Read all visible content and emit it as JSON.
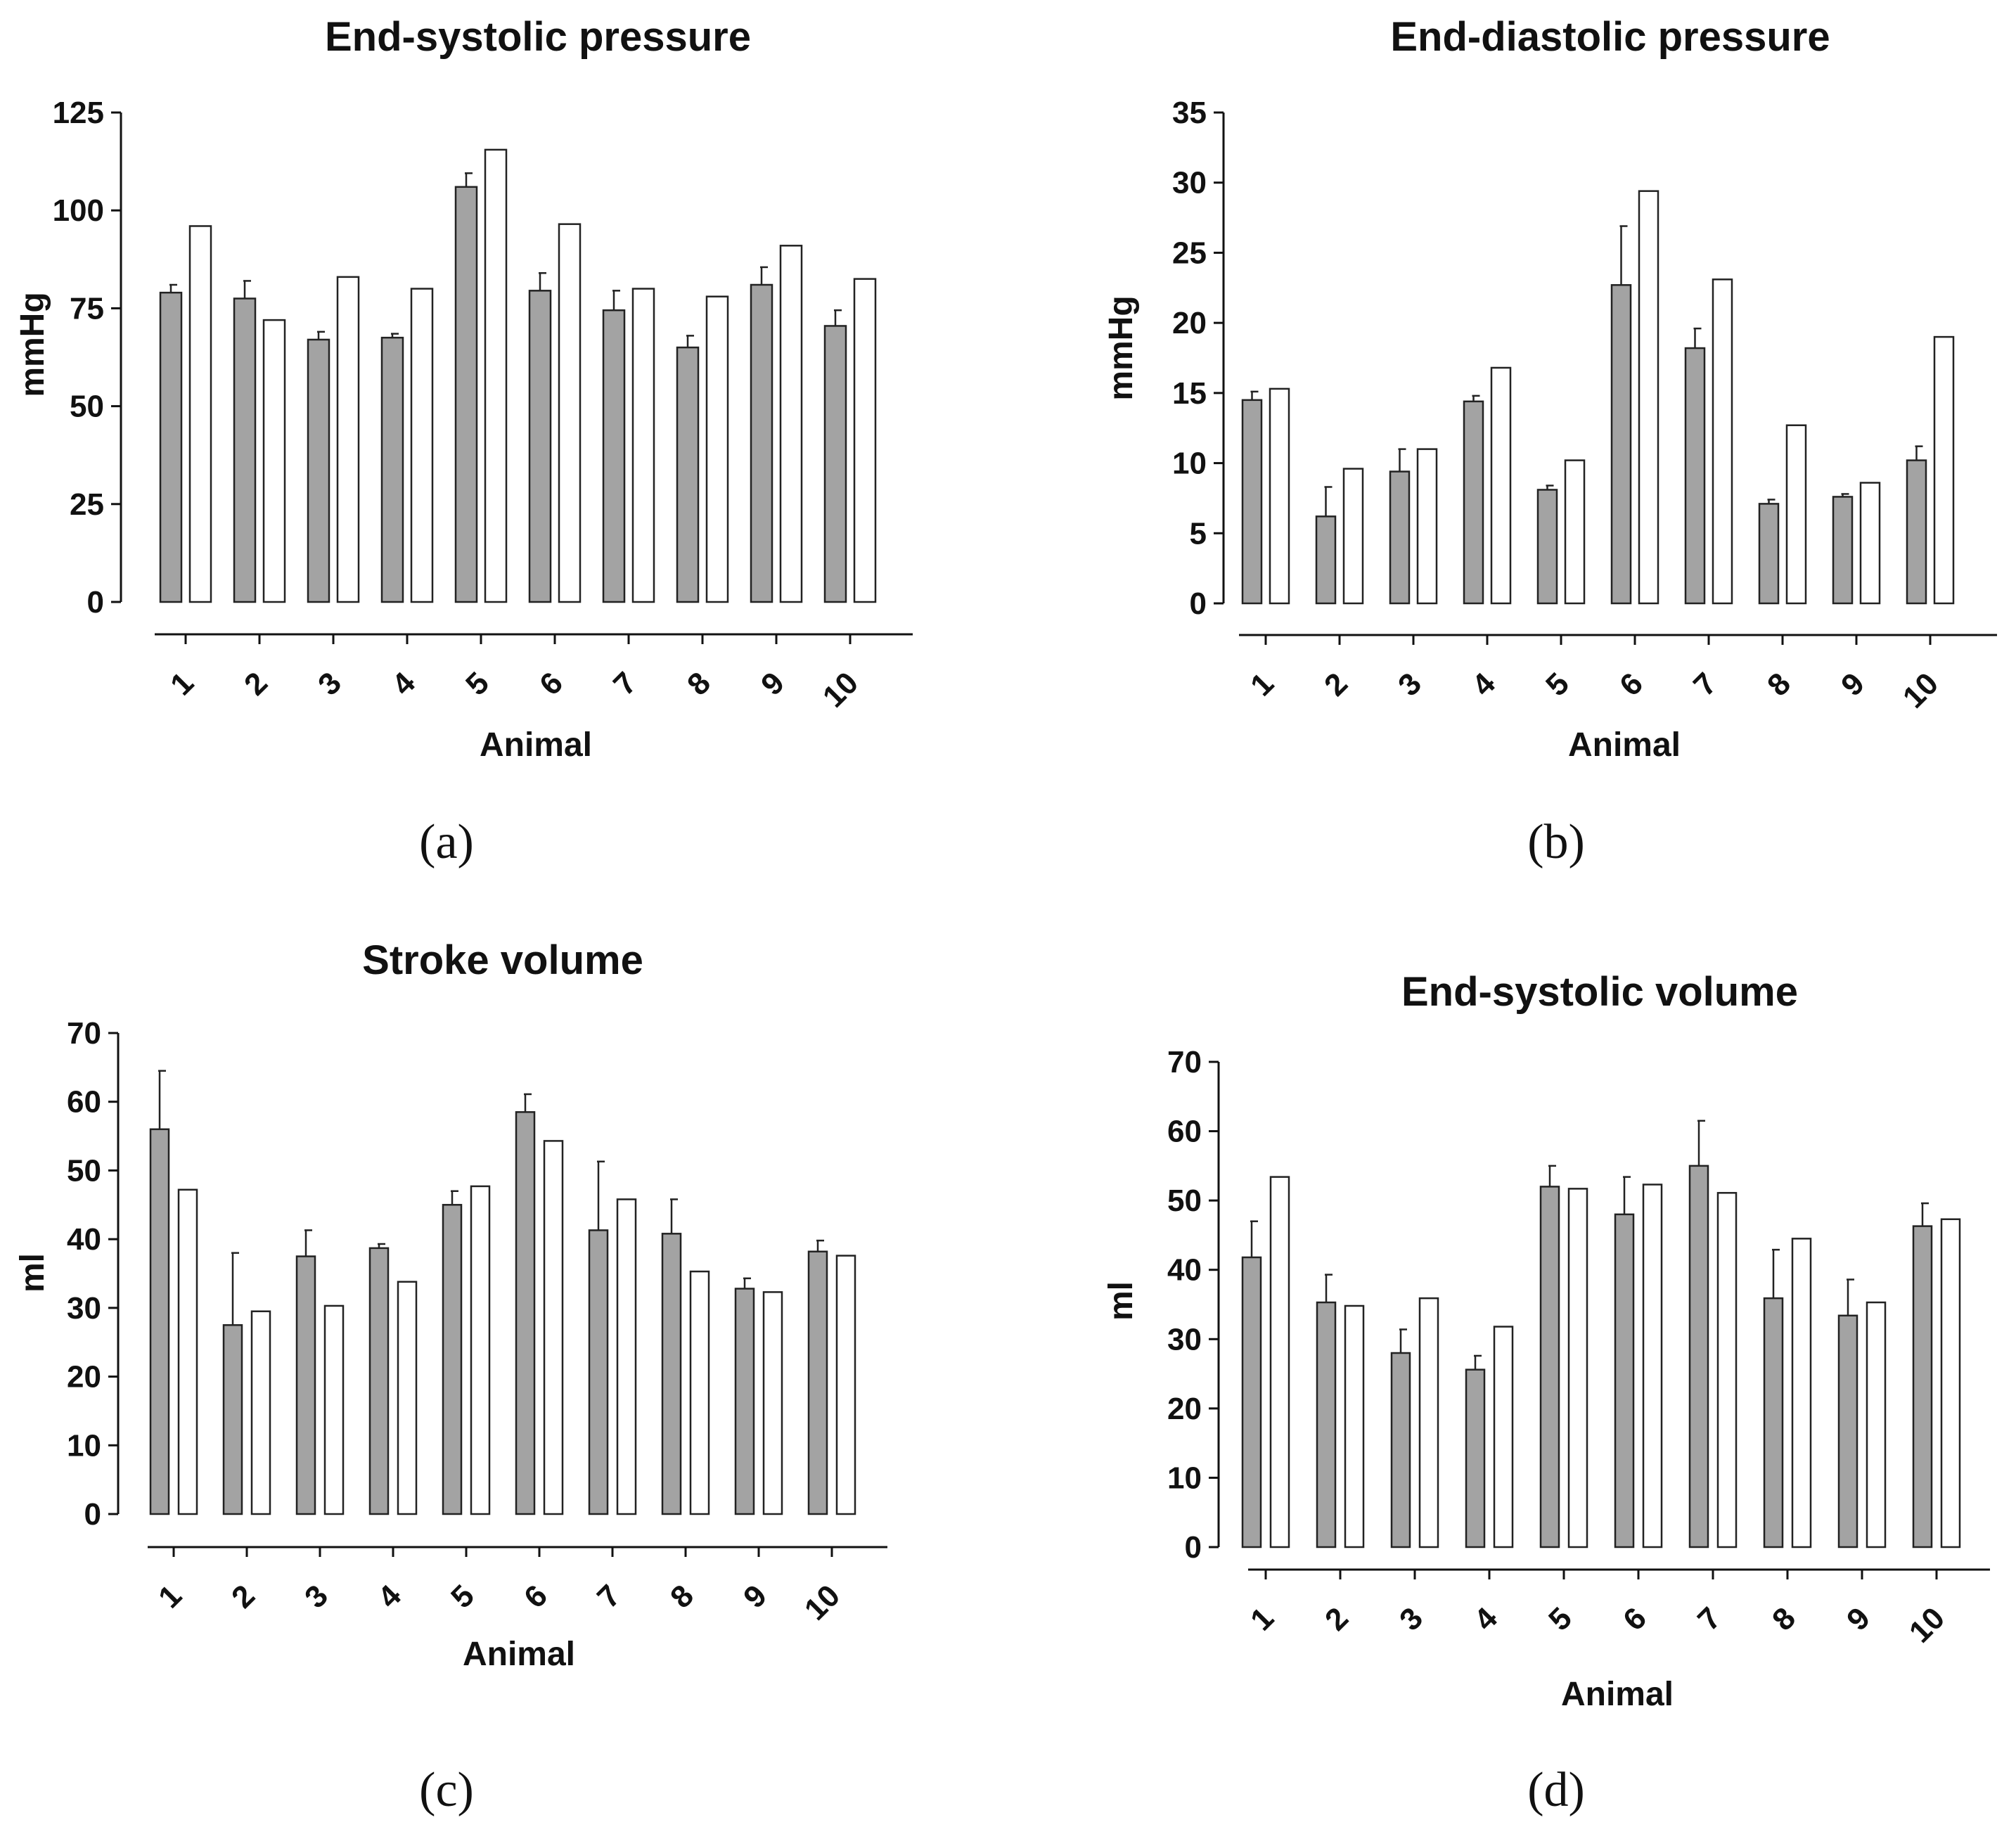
{
  "colors": {
    "dark": "#a3a3a3",
    "light": "#ffffff",
    "stroke": "#222222",
    "axis": "#111111"
  },
  "chart_data": [
    {
      "type": "bar",
      "panel": "(a)",
      "title": "End-systolic pressure",
      "ylabel": "mmHg",
      "xlabel": "Animal",
      "ylim": [
        0,
        125
      ],
      "yticks": [
        0,
        25,
        50,
        75,
        100,
        125
      ],
      "categories": [
        "1",
        "2",
        "3",
        "4",
        "5",
        "6",
        "7",
        "8",
        "9",
        "10"
      ],
      "series": [
        {
          "name": "gray",
          "values": [
            79,
            77.5,
            67,
            67.5,
            106,
            79.5,
            74.5,
            65,
            81,
            70.5
          ],
          "errors": [
            2,
            4.5,
            2,
            1,
            3.5,
            4.5,
            5,
            3,
            4.5,
            4
          ]
        },
        {
          "name": "white",
          "values": [
            96,
            72,
            83,
            80,
            115.5,
            96.5,
            80,
            78,
            91,
            82.5
          ],
          "errors": [
            0,
            0,
            0,
            0,
            0,
            0,
            0,
            0,
            0,
            0
          ]
        }
      ]
    },
    {
      "type": "bar",
      "panel": "(b)",
      "title": "End-diastolic pressure",
      "ylabel": "mmHg",
      "xlabel": "Animal",
      "ylim": [
        0,
        35
      ],
      "yticks": [
        0,
        5,
        10,
        15,
        20,
        25,
        30,
        35
      ],
      "categories": [
        "1",
        "2",
        "3",
        "4",
        "5",
        "6",
        "7",
        "8",
        "9",
        "10"
      ],
      "series": [
        {
          "name": "gray",
          "values": [
            14.5,
            6.2,
            9.4,
            14.4,
            8.1,
            22.7,
            18.2,
            7.1,
            7.6,
            10.2
          ],
          "errors": [
            0.6,
            2.1,
            1.6,
            0.4,
            0.3,
            4.2,
            1.4,
            0.3,
            0.2,
            1
          ]
        },
        {
          "name": "white",
          "values": [
            15.3,
            9.6,
            11,
            16.8,
            10.2,
            29.4,
            23.1,
            12.7,
            8.6,
            19
          ],
          "errors": [
            0,
            0,
            0,
            0,
            0,
            0,
            0,
            0,
            0,
            0
          ]
        }
      ]
    },
    {
      "type": "bar",
      "panel": "(c)",
      "title": "Stroke volume",
      "ylabel": "ml",
      "xlabel": "Animal",
      "ylim": [
        0,
        70
      ],
      "yticks": [
        0,
        10,
        20,
        30,
        40,
        50,
        60,
        70
      ],
      "categories": [
        "1",
        "2",
        "3",
        "4",
        "5",
        "6",
        "7",
        "8",
        "9",
        "10"
      ],
      "series": [
        {
          "name": "gray",
          "values": [
            56,
            27.5,
            37.5,
            38.7,
            45,
            58.5,
            41.3,
            40.8,
            32.8,
            38.2
          ],
          "errors": [
            8.5,
            10.5,
            3.8,
            0.6,
            2,
            2.6,
            10,
            5,
            1.5,
            1.6
          ]
        },
        {
          "name": "white",
          "values": [
            47.2,
            29.5,
            30.3,
            33.8,
            47.7,
            54.3,
            45.8,
            35.3,
            32.3,
            37.6
          ],
          "errors": [
            0,
            0,
            0,
            0,
            0,
            0,
            0,
            0,
            0,
            0
          ]
        }
      ]
    },
    {
      "type": "bar",
      "panel": "(d)",
      "title": "End-systolic volume",
      "ylabel": "ml",
      "xlabel": "Animal",
      "ylim": [
        0,
        70
      ],
      "yticks": [
        0,
        10,
        20,
        30,
        40,
        50,
        60,
        70
      ],
      "categories": [
        "1",
        "2",
        "3",
        "4",
        "5",
        "6",
        "7",
        "8",
        "9",
        "10"
      ],
      "series": [
        {
          "name": "gray",
          "values": [
            41.8,
            35.3,
            28,
            25.6,
            52,
            48,
            55,
            35.9,
            33.4,
            46.3
          ],
          "errors": [
            5.2,
            4,
            3.4,
            2,
            3,
            5.4,
            6.5,
            7,
            5.2,
            3.3
          ]
        },
        {
          "name": "white",
          "values": [
            53.4,
            34.8,
            35.9,
            31.8,
            51.7,
            52.3,
            51.1,
            44.5,
            35.3,
            47.3
          ],
          "errors": [
            0,
            0,
            0,
            0,
            0,
            0,
            0,
            0,
            0,
            0
          ]
        }
      ]
    }
  ]
}
